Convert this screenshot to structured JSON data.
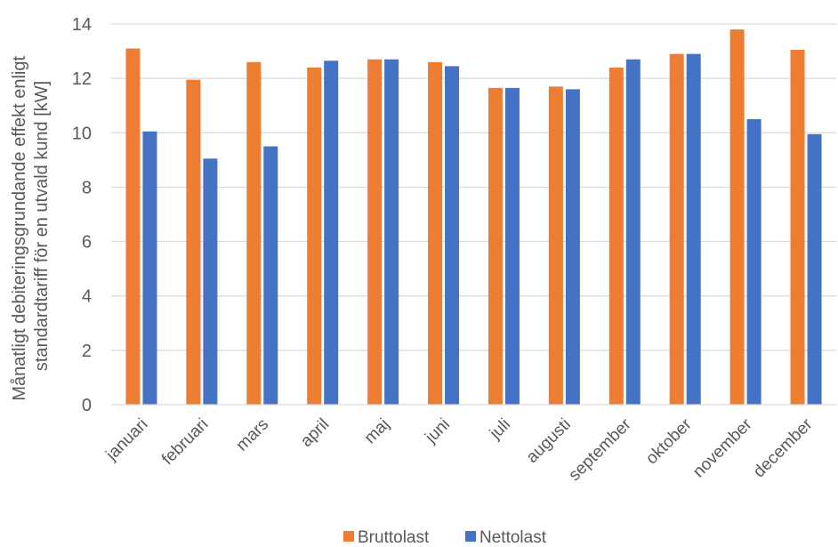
{
  "chart_data": {
    "type": "bar",
    "title": "",
    "xlabel": "",
    "ylabel_lines": [
      "Månatligt debiteringsgrundande effekt enligt",
      "standardtariff för en utvald kund [kW]"
    ],
    "categories": [
      "januari",
      "februari",
      "mars",
      "april",
      "maj",
      "juni",
      "juli",
      "augusti",
      "september",
      "oktober",
      "november",
      "december"
    ],
    "series": [
      {
        "name": "Bruttolast",
        "color": "#ED7D31",
        "values": [
          13.1,
          11.95,
          12.6,
          12.4,
          12.7,
          12.6,
          11.65,
          11.7,
          12.4,
          12.9,
          13.8,
          13.05
        ]
      },
      {
        "name": "Nettolast",
        "color": "#4472C4",
        "values": [
          10.05,
          9.05,
          9.5,
          12.65,
          12.7,
          12.45,
          11.65,
          11.6,
          12.7,
          12.9,
          10.5,
          9.95
        ]
      }
    ],
    "ylim": [
      0,
      14
    ],
    "yticks": [
      0,
      2,
      4,
      6,
      8,
      10,
      12,
      14
    ],
    "grid": true,
    "legend_position": "bottom"
  }
}
